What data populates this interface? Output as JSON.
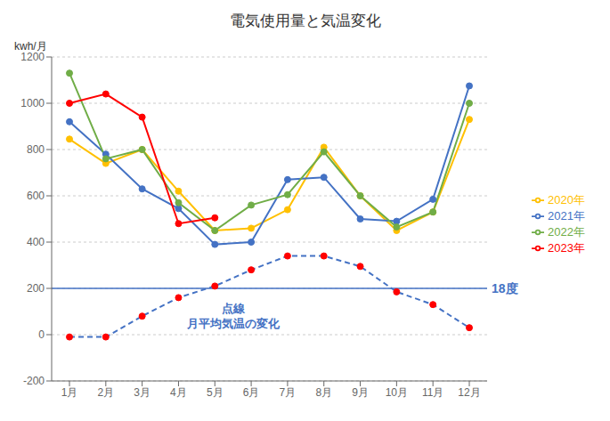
{
  "chart_data": {
    "type": "line",
    "title": "電気使用量と気温変化",
    "y_label": "kwh/月",
    "categories": [
      "1月",
      "2月",
      "3月",
      "4月",
      "5月",
      "6月",
      "7月",
      "8月",
      "9月",
      "10月",
      "11月",
      "12月"
    ],
    "series": [
      {
        "color": "#4472C4",
        "line_style": "dashed",
        "values": [
          -10,
          -10,
          80,
          160,
          210,
          280,
          340,
          340,
          295,
          185,
          130,
          30
        ]
      },
      {
        "color": "#FF0000",
        "line_style": "none",
        "marker": "circle",
        "values": [
          -10,
          -10,
          80,
          160,
          210,
          280,
          340,
          340,
          295,
          185,
          130,
          30
        ]
      },
      {
        "name": "2020年",
        "color": "#FFC000",
        "marker": "circle",
        "values": [
          845,
          740,
          800,
          620,
          450,
          460,
          540,
          810,
          600,
          450,
          530,
          930
        ]
      },
      {
        "name": "2021年",
        "color": "#4472C4",
        "marker": "circle",
        "values": [
          920,
          780,
          630,
          545,
          390,
          400,
          670,
          680,
          500,
          490,
          585,
          1075
        ]
      },
      {
        "name": "2022年",
        "color": "#70AD47",
        "marker": "circle",
        "values": [
          1130,
          760,
          800,
          570,
          450,
          560,
          605,
          790,
          600,
          465,
          530,
          1000
        ]
      },
      {
        "name": "2023年",
        "color": "#FF0000",
        "marker": "circle",
        "values": [
          1000,
          1040,
          940,
          480,
          505,
          null,
          null,
          null,
          null,
          null,
          null,
          null
        ]
      }
    ],
    "hlines": [
      {
        "value": 200,
        "label": "18度",
        "color": "#4472C4"
      }
    ],
    "annotations": [
      {
        "text": "点線",
        "color": "#4472C4"
      },
      {
        "text": "月平均気温の変化",
        "color": "#4472C4"
      }
    ],
    "ylim": [
      -200,
      1200
    ],
    "yticks": [
      -200,
      0,
      200,
      400,
      600,
      800,
      1000,
      1200
    ],
    "grid": true,
    "legend": "right"
  }
}
